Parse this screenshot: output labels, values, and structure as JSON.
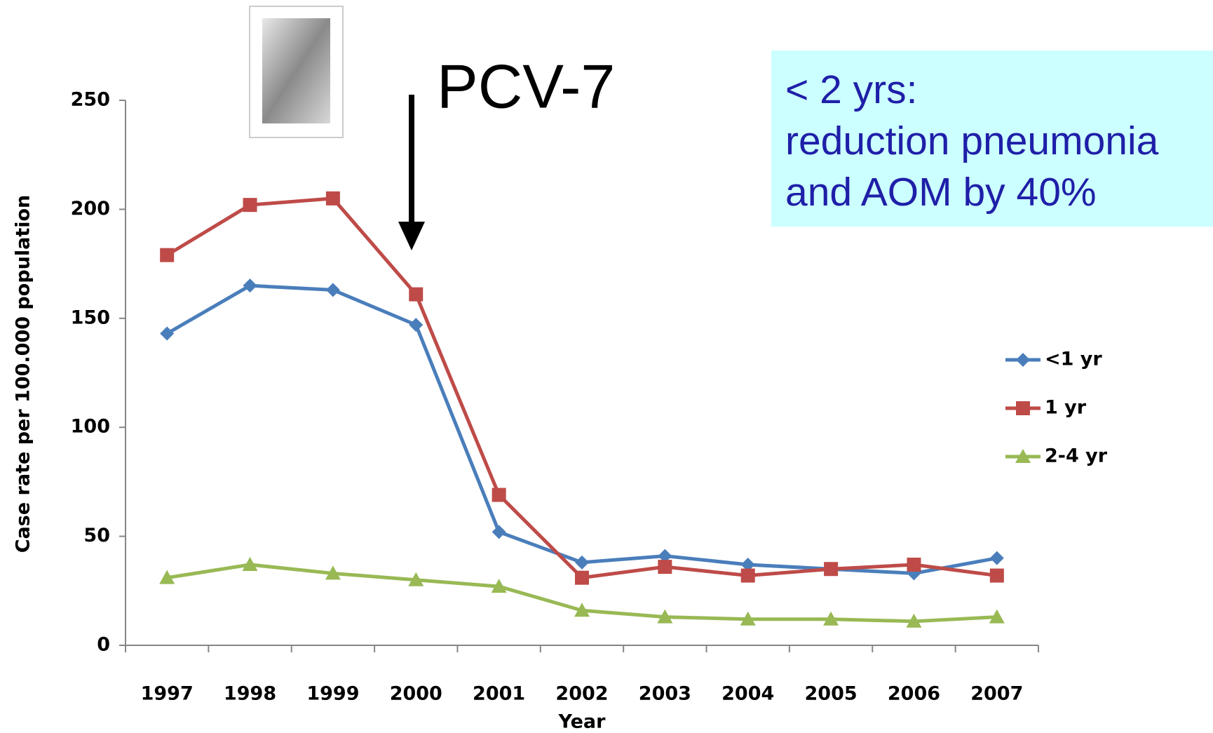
{
  "chart_data": {
    "type": "line",
    "x_label": "Year",
    "y_label": "Case rate per 100.000 population",
    "categories": [
      "1997",
      "1998",
      "1999",
      "2000",
      "2001",
      "2002",
      "2003",
      "2004",
      "2005",
      "2006",
      "2007"
    ],
    "series": [
      {
        "name": "<1 yr",
        "color": "#4a7ebb",
        "marker": "diamond",
        "values": [
          143,
          165,
          163,
          147,
          52,
          38,
          41,
          37,
          35,
          33,
          40
        ]
      },
      {
        "name": "1 yr",
        "color": "#be4b48",
        "marker": "square",
        "values": [
          179,
          202,
          205,
          161,
          69,
          31,
          36,
          32,
          35,
          37,
          32
        ]
      },
      {
        "name": "2-4 yr",
        "color": "#98b954",
        "marker": "triangle",
        "values": [
          31,
          37,
          33,
          30,
          27,
          16,
          13,
          12,
          12,
          11,
          13
        ]
      }
    ],
    "ylim": [
      0,
      250
    ],
    "yticks": [
      0,
      50,
      100,
      150,
      200,
      250
    ],
    "grid": false,
    "legend": "right",
    "annotations": {
      "arrow_label": "PCV-7",
      "box": [
        "< 2 yrs:",
        "reduction pneumonia",
        "and AOM by 40%"
      ]
    }
  }
}
